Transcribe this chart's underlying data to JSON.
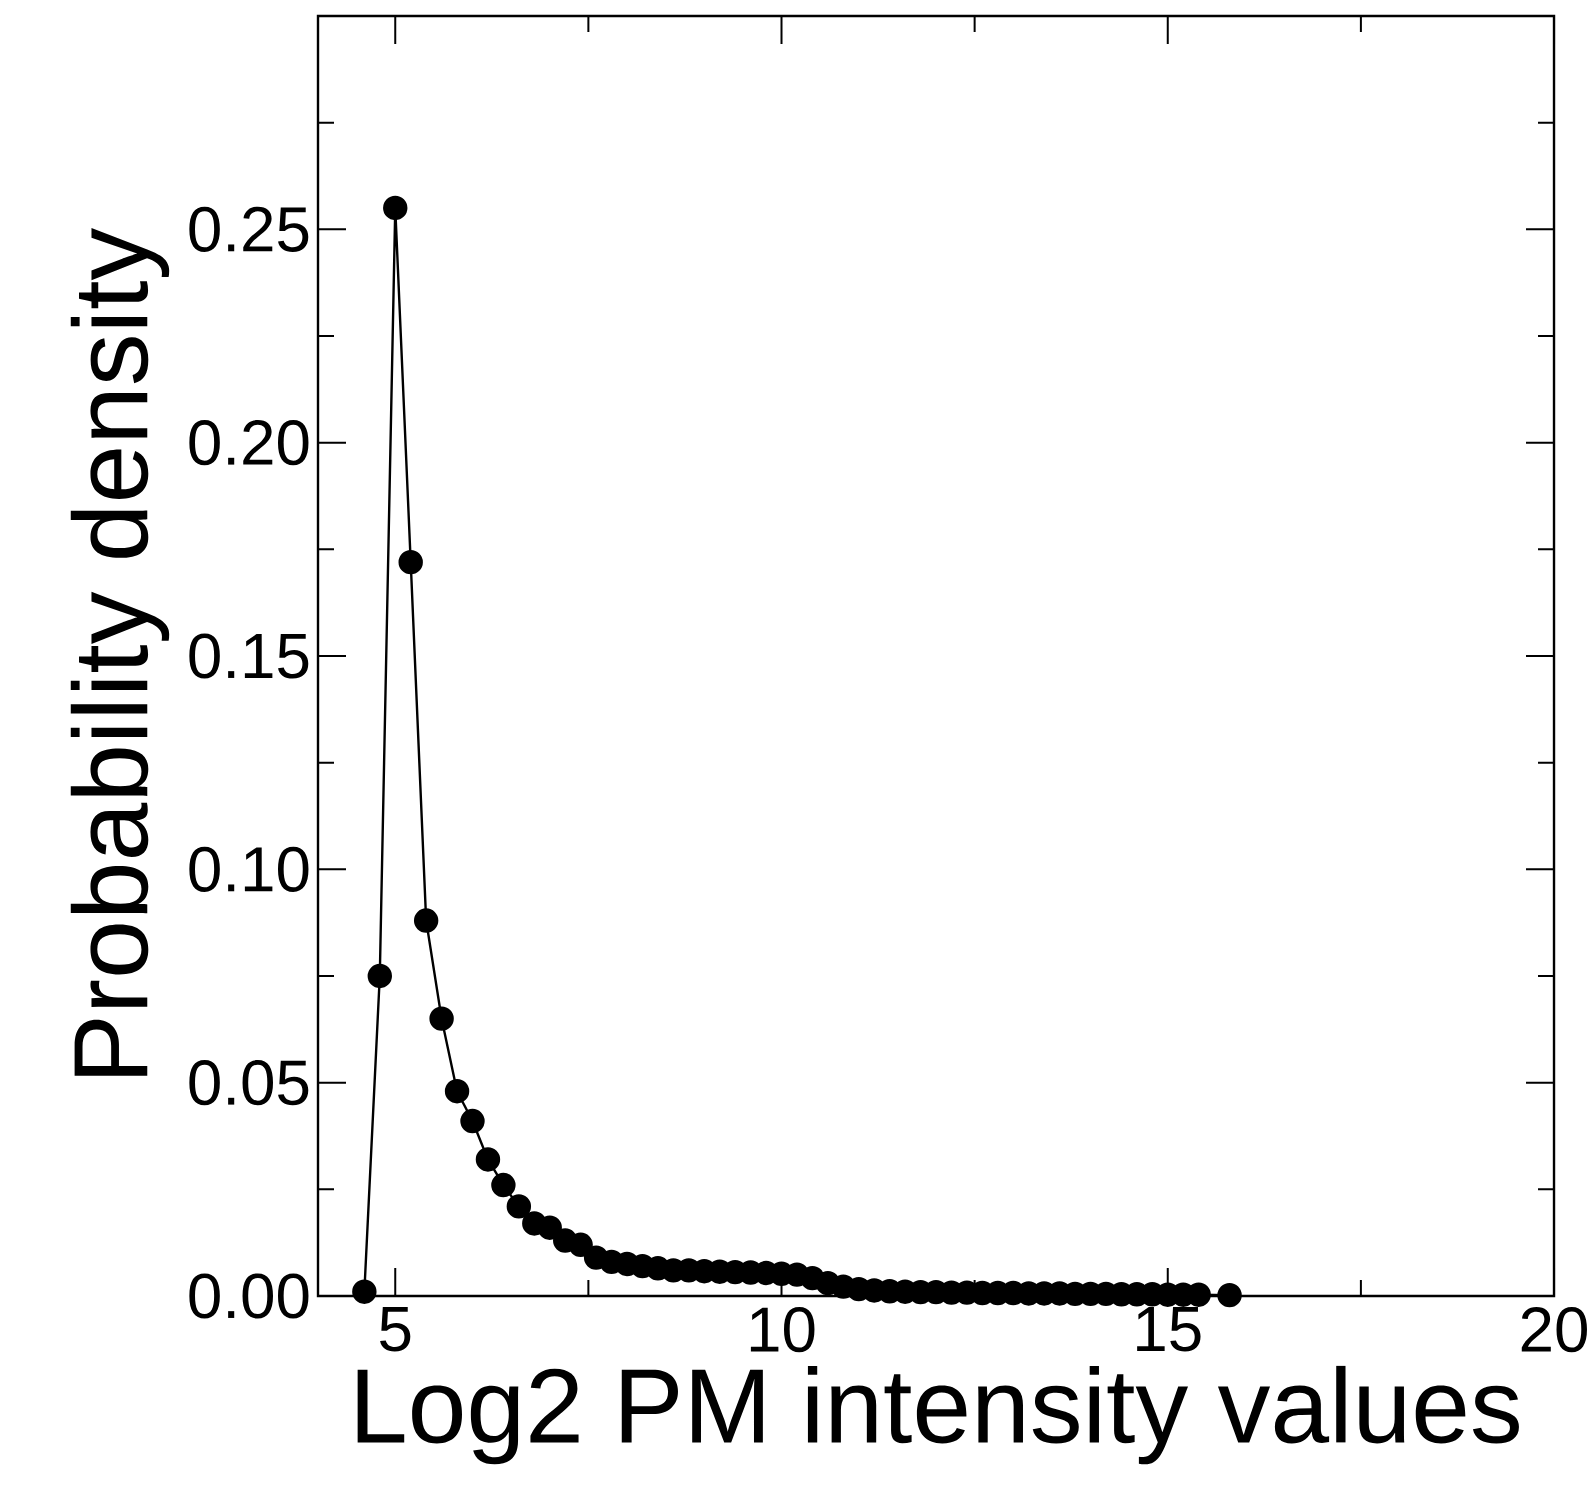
{
  "chart_data": {
    "type": "line",
    "xlabel": "Log2 PM intensity values",
    "ylabel": "Probability density",
    "x": [
      4.6,
      4.8,
      5.0,
      5.2,
      5.4,
      5.6,
      5.8,
      6.0,
      6.2,
      6.4,
      6.6,
      6.8,
      7.0,
      7.2,
      7.4,
      7.6,
      7.8,
      8.0,
      8.2,
      8.4,
      8.6,
      8.8,
      9.0,
      9.2,
      9.4,
      9.6,
      9.8,
      10.0,
      10.2,
      10.4,
      10.6,
      10.8,
      11.0,
      11.2,
      11.4,
      11.6,
      11.8,
      12.0,
      12.2,
      12.4,
      12.6,
      12.8,
      13.0,
      13.2,
      13.4,
      13.6,
      13.8,
      14.0,
      14.2,
      14.4,
      14.6,
      14.8,
      15.0,
      15.2,
      15.4,
      15.8
    ],
    "series": [
      {
        "color": "#000000",
        "values": [
          0.001,
          0.075,
          0.255,
          0.172,
          0.088,
          0.065,
          0.048,
          0.041,
          0.032,
          0.026,
          0.021,
          0.017,
          0.016,
          0.013,
          0.012,
          0.009,
          0.008,
          0.0075,
          0.007,
          0.0065,
          0.006,
          0.006,
          0.0058,
          0.0057,
          0.0056,
          0.0055,
          0.0054,
          0.0052,
          0.005,
          0.0042,
          0.003,
          0.0022,
          0.0016,
          0.0013,
          0.0011,
          0.001,
          0.0009,
          0.0009,
          0.0008,
          0.0008,
          0.0007,
          0.0007,
          0.0007,
          0.0006,
          0.0006,
          0.0006,
          0.0005,
          0.0005,
          0.0005,
          0.0004,
          0.0004,
          0.0004,
          0.0003,
          0.0003,
          0.0003,
          0.0002
        ]
      }
    ],
    "xlim": [
      4,
      20
    ],
    "ylim": [
      0,
      0.3
    ],
    "xticks": [
      {
        "value": 5,
        "label": "5"
      },
      {
        "value": 7.5,
        "label": null
      },
      {
        "value": 10,
        "label": "10"
      },
      {
        "value": 12.5,
        "label": null
      },
      {
        "value": 15,
        "label": "15"
      },
      {
        "value": 17.5,
        "label": null
      },
      {
        "value": 20,
        "label": "20"
      }
    ],
    "yticks": [
      {
        "value": 0,
        "label": "0.00"
      },
      {
        "value": 0.025,
        "label": null
      },
      {
        "value": 0.05,
        "label": "0.05"
      },
      {
        "value": 0.075,
        "label": null
      },
      {
        "value": 0.1,
        "label": "0.10"
      },
      {
        "value": 0.125,
        "label": null
      },
      {
        "value": 0.15,
        "label": "0.15"
      },
      {
        "value": 0.175,
        "label": null
      },
      {
        "value": 0.2,
        "label": "0.20"
      },
      {
        "value": 0.225,
        "label": null
      },
      {
        "value": 0.25,
        "label": "0.25"
      },
      {
        "value": 0.275,
        "label": null
      }
    ],
    "grid": false,
    "marker": "circle",
    "line_style": "solid"
  }
}
